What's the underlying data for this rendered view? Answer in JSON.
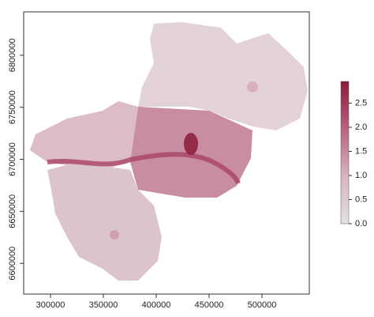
{
  "chart_data": {
    "type": "raster",
    "xlim": [
      274600,
      544800
    ],
    "ylim": [
      6570500,
      6841700
    ],
    "xticks": [
      300000,
      350000,
      400000,
      450000,
      500000
    ],
    "yticks": [
      6600000,
      6650000,
      6700000,
      6750000,
      6800000
    ],
    "colorbar": {
      "zlim": [
        0,
        2.95
      ],
      "colors": [
        "#e2e2e2",
        "#d7b4c0",
        "#b8637f",
        "#8b1a3a"
      ],
      "ticks": [
        {
          "value": 0,
          "label": "0.0"
        },
        0.5,
        {
          "value": 1,
          "label": "1.0"
        },
        1.5,
        {
          "value": 2,
          "label": "2.0"
        },
        2.5
      ]
    }
  }
}
